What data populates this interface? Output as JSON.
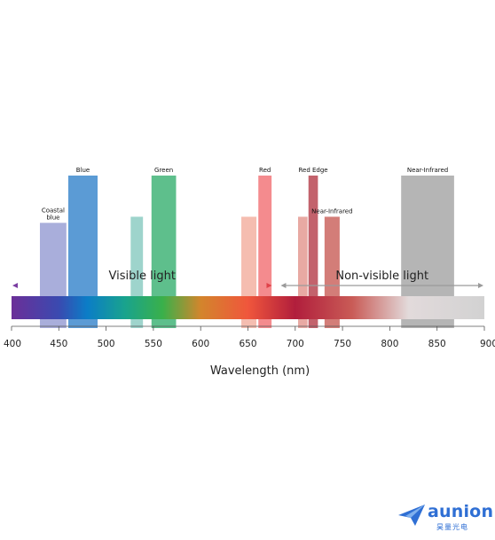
{
  "chart_data": {
    "type": "bar",
    "xlabel": "Wavelength (nm)",
    "xlim": [
      400,
      900
    ],
    "x_ticks": [
      "400",
      "450",
      "500",
      "550",
      "600",
      "650",
      "700",
      "750",
      "800",
      "850",
      "900"
    ],
    "bands": [
      {
        "label": [
          "Coastal",
          "blue"
        ],
        "start": 430,
        "end": 458,
        "relative_height": 0.69,
        "color": "#a9aedb"
      },
      {
        "label": [
          "Blue"
        ],
        "start": 460,
        "end": 491,
        "relative_height": 1.0,
        "color": "#5b9bd5"
      },
      {
        "label": [],
        "start": 526,
        "end": 539,
        "relative_height": 0.73,
        "color": "#9ed4cc"
      },
      {
        "label": [
          "Green"
        ],
        "start": 548,
        "end": 574,
        "relative_height": 1.0,
        "color": "#5ebf8c"
      },
      {
        "label": [],
        "start": 643,
        "end": 659,
        "relative_height": 0.73,
        "color": "#f5bdb0"
      },
      {
        "label": [
          "Red"
        ],
        "start": 661,
        "end": 675,
        "relative_height": 1.0,
        "color": "#f48b8e"
      },
      {
        "label": [],
        "start": 703,
        "end": 713,
        "relative_height": 0.73,
        "color": "#e8a9a3"
      },
      {
        "label": [
          "Red Edge"
        ],
        "start": 714,
        "end": 724,
        "relative_height": 1.0,
        "color": "#c3626c"
      },
      {
        "label": [
          "Near-Infrared"
        ],
        "start": 731,
        "end": 747,
        "relative_height": 0.73,
        "color": "#d37d78"
      },
      {
        "label": [
          "Near-Infrared"
        ],
        "start": 812,
        "end": 868,
        "relative_height": 1.0,
        "color": "#b5b5b5"
      }
    ],
    "regions": [
      {
        "label": "Visible light",
        "start": 400,
        "end": 680,
        "arrow_color_start": "#7a3da1",
        "arrow_color_end": "#e0424a"
      },
      {
        "label": "Non-visible light",
        "start": 680,
        "end": 900,
        "arrow_color_start": "#9a9a9a",
        "arrow_color_end": "#9a9a9a"
      }
    ],
    "spectrum_stops": [
      {
        "nm": 400,
        "color": "#6b2f98"
      },
      {
        "nm": 450,
        "color": "#3a4ab0"
      },
      {
        "nm": 480,
        "color": "#0b7dc7"
      },
      {
        "nm": 520,
        "color": "#19a38d"
      },
      {
        "nm": 560,
        "color": "#3ab04a"
      },
      {
        "nm": 600,
        "color": "#d3852c"
      },
      {
        "nm": 650,
        "color": "#f0563c"
      },
      {
        "nm": 700,
        "color": "#b11e3c"
      },
      {
        "nm": 760,
        "color": "#c95b56"
      },
      {
        "nm": 820,
        "color": "#e2dadb"
      },
      {
        "nm": 900,
        "color": "#d2d2d2"
      }
    ]
  },
  "logo": {
    "name": "aunion",
    "subtitle": "昊量光电",
    "color": "#2f6fd4"
  }
}
